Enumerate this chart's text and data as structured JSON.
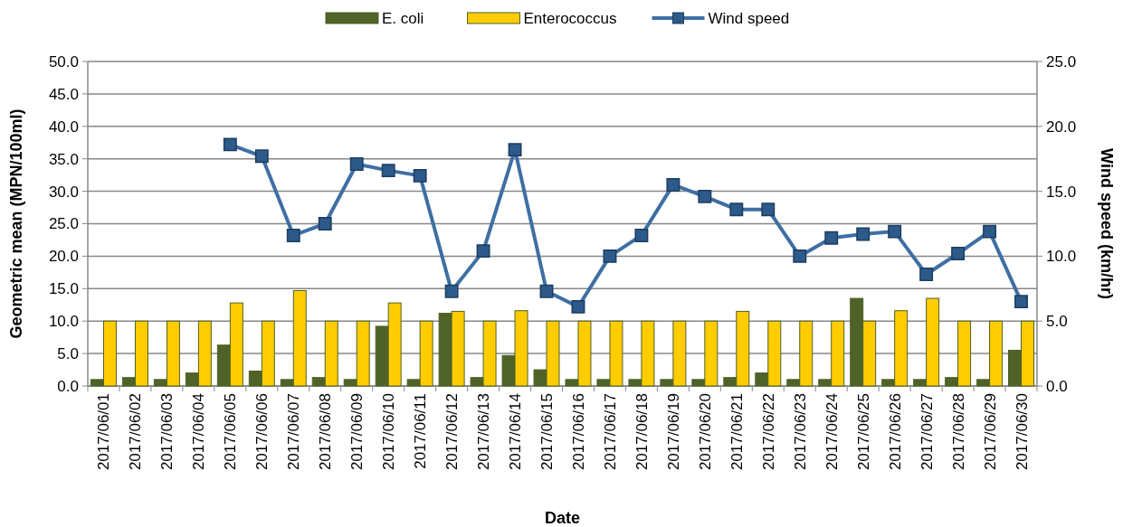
{
  "chart_data": {
    "type": "bar",
    "xlabel": "Date",
    "ylabel": "Geometric mean (MPN/100ml)",
    "y2label": "Wind speed (km/hr)",
    "categories": [
      "2017/06/01",
      "2017/06/02",
      "2017/06/03",
      "2017/06/04",
      "2017/06/05",
      "2017/06/06",
      "2017/06/07",
      "2017/06/08",
      "2017/06/09",
      "2017/06/10",
      "2017/06/11",
      "2017/06/12",
      "2017/06/13",
      "2017/06/14",
      "2017/06/15",
      "2017/06/16",
      "2017/06/17",
      "2017/06/18",
      "2017/06/19",
      "2017/06/20",
      "2017/06/21",
      "2017/06/22",
      "2017/06/23",
      "2017/06/24",
      "2017/06/25",
      "2017/06/26",
      "2017/06/27",
      "2017/06/28",
      "2017/06/29",
      "2017/06/30"
    ],
    "series": [
      {
        "name": "E. coli",
        "color": "#4f6228",
        "values": [
          1,
          1.3,
          1,
          2,
          6.3,
          2.3,
          1,
          1.3,
          1,
          9.2,
          1,
          11.2,
          1.3,
          4.7,
          2.5,
          1,
          1,
          1,
          1,
          1,
          1.3,
          2,
          1,
          1,
          13.5,
          1,
          1,
          1.3,
          1,
          5.5
        ]
      },
      {
        "name": "Enterococcus",
        "color": "#ffcc00",
        "values": [
          10,
          10,
          10,
          10,
          12.8,
          10,
          14.7,
          10,
          10,
          12.8,
          10,
          11.5,
          10,
          11.6,
          10,
          10,
          10,
          10,
          10,
          10,
          11.5,
          10,
          10,
          10,
          10,
          11.6,
          13.5,
          10,
          10,
          10
        ]
      },
      {
        "name": "Wind speed",
        "type": "line",
        "axis": "y2",
        "color": "#3e6fa3",
        "marker": "square",
        "values": [
          null,
          null,
          null,
          null,
          18.6,
          17.7,
          11.6,
          12.5,
          17.1,
          16.6,
          16.2,
          7.3,
          10.4,
          18.2,
          7.3,
          6.1,
          10.0,
          11.6,
          15.5,
          14.6,
          13.6,
          13.6,
          10.0,
          11.4,
          11.7,
          11.9,
          8.6,
          10.2,
          11.9,
          6.5
        ]
      }
    ],
    "ylim": [
      0,
      50
    ],
    "yticks": [
      {
        "value": 0,
        "label": "0.0"
      },
      {
        "value": 5,
        "label": "5.0"
      },
      {
        "value": 10,
        "label": "10.0"
      },
      {
        "value": 15,
        "label": "15.0"
      },
      {
        "value": 20,
        "label": "20.0"
      },
      {
        "value": 25,
        "label": "25.0"
      },
      {
        "value": 30,
        "label": "30.0"
      },
      {
        "value": 35,
        "label": "35.0"
      },
      {
        "value": 40,
        "label": "40.0"
      },
      {
        "value": 45,
        "label": "45.0"
      },
      {
        "value": 50,
        "label": "50.0"
      }
    ],
    "y2lim": [
      0,
      25
    ],
    "y2ticks": [
      {
        "value": 0,
        "label": "0.0"
      },
      {
        "value": 5,
        "label": "5.0"
      },
      {
        "value": 10,
        "label": "10.0"
      },
      {
        "value": 15,
        "label": "15.0"
      },
      {
        "value": 20,
        "label": "20.0"
      },
      {
        "value": 25,
        "label": "25.0"
      }
    ],
    "grid": "y",
    "legend": "top"
  }
}
